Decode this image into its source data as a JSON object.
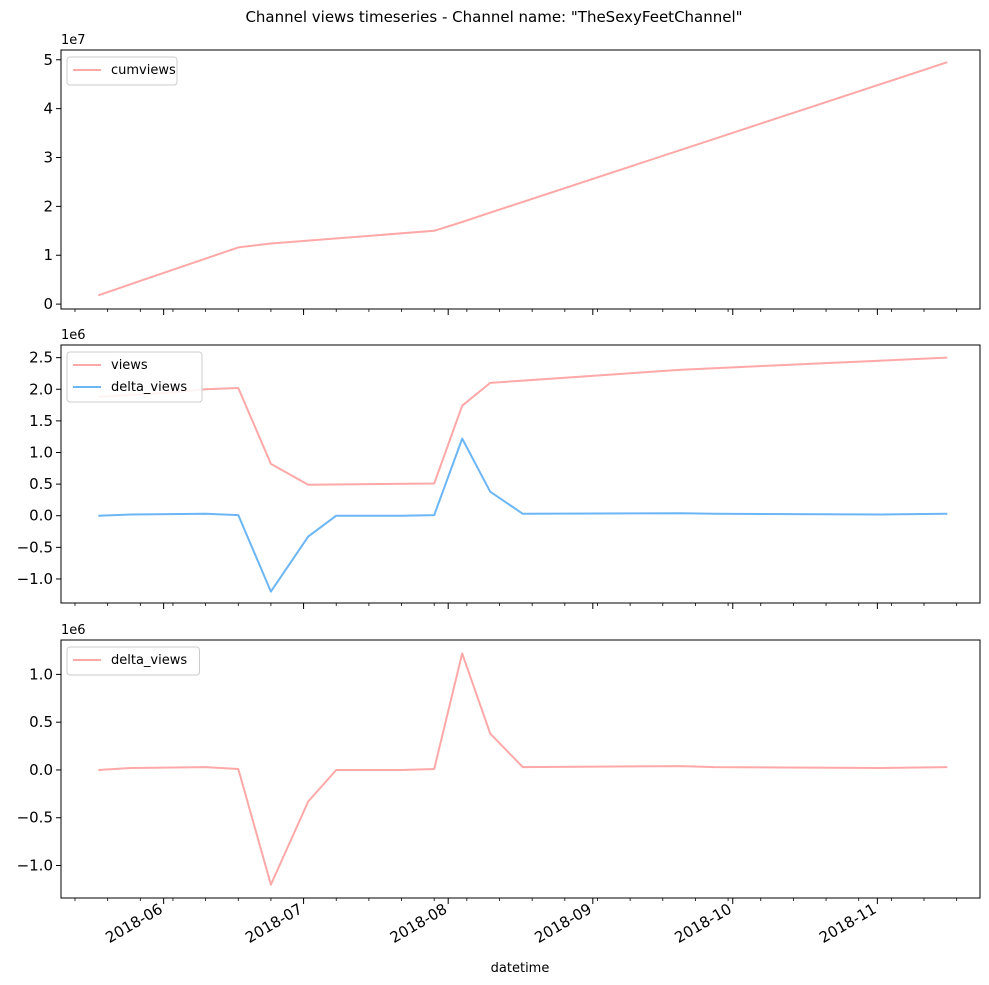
{
  "figure": {
    "title": "Channel views timeseries - Channel name: \"TheSexyFeetChannel\"",
    "xlabel": "datetime",
    "x_tick_labels": [
      "2018-06",
      "2018-07",
      "2018-08",
      "2018-09",
      "2018-10",
      "2018-11"
    ]
  },
  "colors": {
    "red_line": "#ffa8a8",
    "blue_line": "#6cb6f5",
    "axes": "#000000"
  },
  "chart_data": [
    {
      "type": "line",
      "title": "",
      "xlabel": "",
      "ylabel": "",
      "x_type": "date",
      "xlim": [
        "2018-05-10",
        "2018-11-23"
      ],
      "ylim": [
        -0.1,
        5.2
      ],
      "scale_label": "1e7",
      "y_ticks": [
        0,
        1,
        2,
        3,
        4,
        5
      ],
      "y_tick_labels": [
        "0",
        "1",
        "2",
        "3",
        "4",
        "5"
      ],
      "legend": "top-left",
      "grid": false,
      "series": [
        {
          "name": "cumviews",
          "color": "#ffa8a8",
          "x": [
            "2018-05-18",
            "2018-06-17",
            "2018-06-24",
            "2018-07-29",
            "2018-08-04",
            "2018-08-09",
            "2018-11-16"
          ],
          "y": [
            0.18,
            1.16,
            1.24,
            1.5,
            1.68,
            1.84,
            4.95
          ]
        }
      ]
    },
    {
      "type": "line",
      "title": "",
      "xlabel": "",
      "ylabel": "",
      "x_type": "date",
      "xlim": [
        "2018-05-10",
        "2018-11-23"
      ],
      "ylim": [
        -1.38,
        2.7
      ],
      "scale_label": "1e6",
      "y_ticks": [
        -1.0,
        -0.5,
        0.0,
        0.5,
        1.0,
        1.5,
        2.0,
        2.5
      ],
      "y_tick_labels": [
        "−1.0",
        "−0.5",
        "0.0",
        "0.5",
        "1.0",
        "1.5",
        "2.0",
        "2.5"
      ],
      "legend": "top-left",
      "grid": false,
      "series": [
        {
          "name": "views",
          "color": "#ffa8a8",
          "x": [
            "2018-05-18",
            "2018-06-03",
            "2018-06-10",
            "2018-06-17",
            "2018-06-24",
            "2018-07-02",
            "2018-07-29",
            "2018-08-04",
            "2018-08-10",
            "2018-09-20",
            "2018-11-16"
          ],
          "y": [
            1.88,
            1.95,
            2.0,
            2.02,
            0.82,
            0.49,
            0.51,
            1.74,
            2.1,
            2.31,
            2.5
          ]
        },
        {
          "name": "delta_views",
          "color": "#6cb6f5",
          "x": [
            "2018-05-18",
            "2018-05-25",
            "2018-06-10",
            "2018-06-17",
            "2018-06-24",
            "2018-07-02",
            "2018-07-08",
            "2018-07-22",
            "2018-07-29",
            "2018-08-04",
            "2018-08-10",
            "2018-08-17",
            "2018-09-20",
            "2018-09-27",
            "2018-11-02",
            "2018-11-16"
          ],
          "y": [
            0.0,
            0.02,
            0.03,
            0.01,
            -1.2,
            -0.33,
            0.0,
            0.0,
            0.01,
            1.22,
            0.38,
            0.03,
            0.04,
            0.03,
            0.02,
            0.03
          ]
        }
      ]
    },
    {
      "type": "line",
      "title": "",
      "xlabel": "datetime",
      "ylabel": "",
      "x_type": "date",
      "xlim": [
        "2018-05-10",
        "2018-11-23"
      ],
      "ylim": [
        -1.34,
        1.36
      ],
      "scale_label": "1e6",
      "y_ticks": [
        -1.0,
        -0.5,
        0.0,
        0.5,
        1.0
      ],
      "y_tick_labels": [
        "−1.0",
        "−0.5",
        "0.0",
        "0.5",
        "1.0"
      ],
      "legend": "top-left",
      "grid": false,
      "series": [
        {
          "name": "delta_views",
          "color": "#ffa8a8",
          "x": [
            "2018-05-18",
            "2018-05-25",
            "2018-06-10",
            "2018-06-17",
            "2018-06-24",
            "2018-07-02",
            "2018-07-08",
            "2018-07-22",
            "2018-07-29",
            "2018-08-04",
            "2018-08-10",
            "2018-08-17",
            "2018-09-20",
            "2018-09-27",
            "2018-11-02",
            "2018-11-16"
          ],
          "y": [
            0.0,
            0.02,
            0.03,
            0.01,
            -1.2,
            -0.33,
            0.0,
            0.0,
            0.01,
            1.22,
            0.38,
            0.03,
            0.04,
            0.03,
            0.02,
            0.03
          ]
        }
      ]
    }
  ]
}
